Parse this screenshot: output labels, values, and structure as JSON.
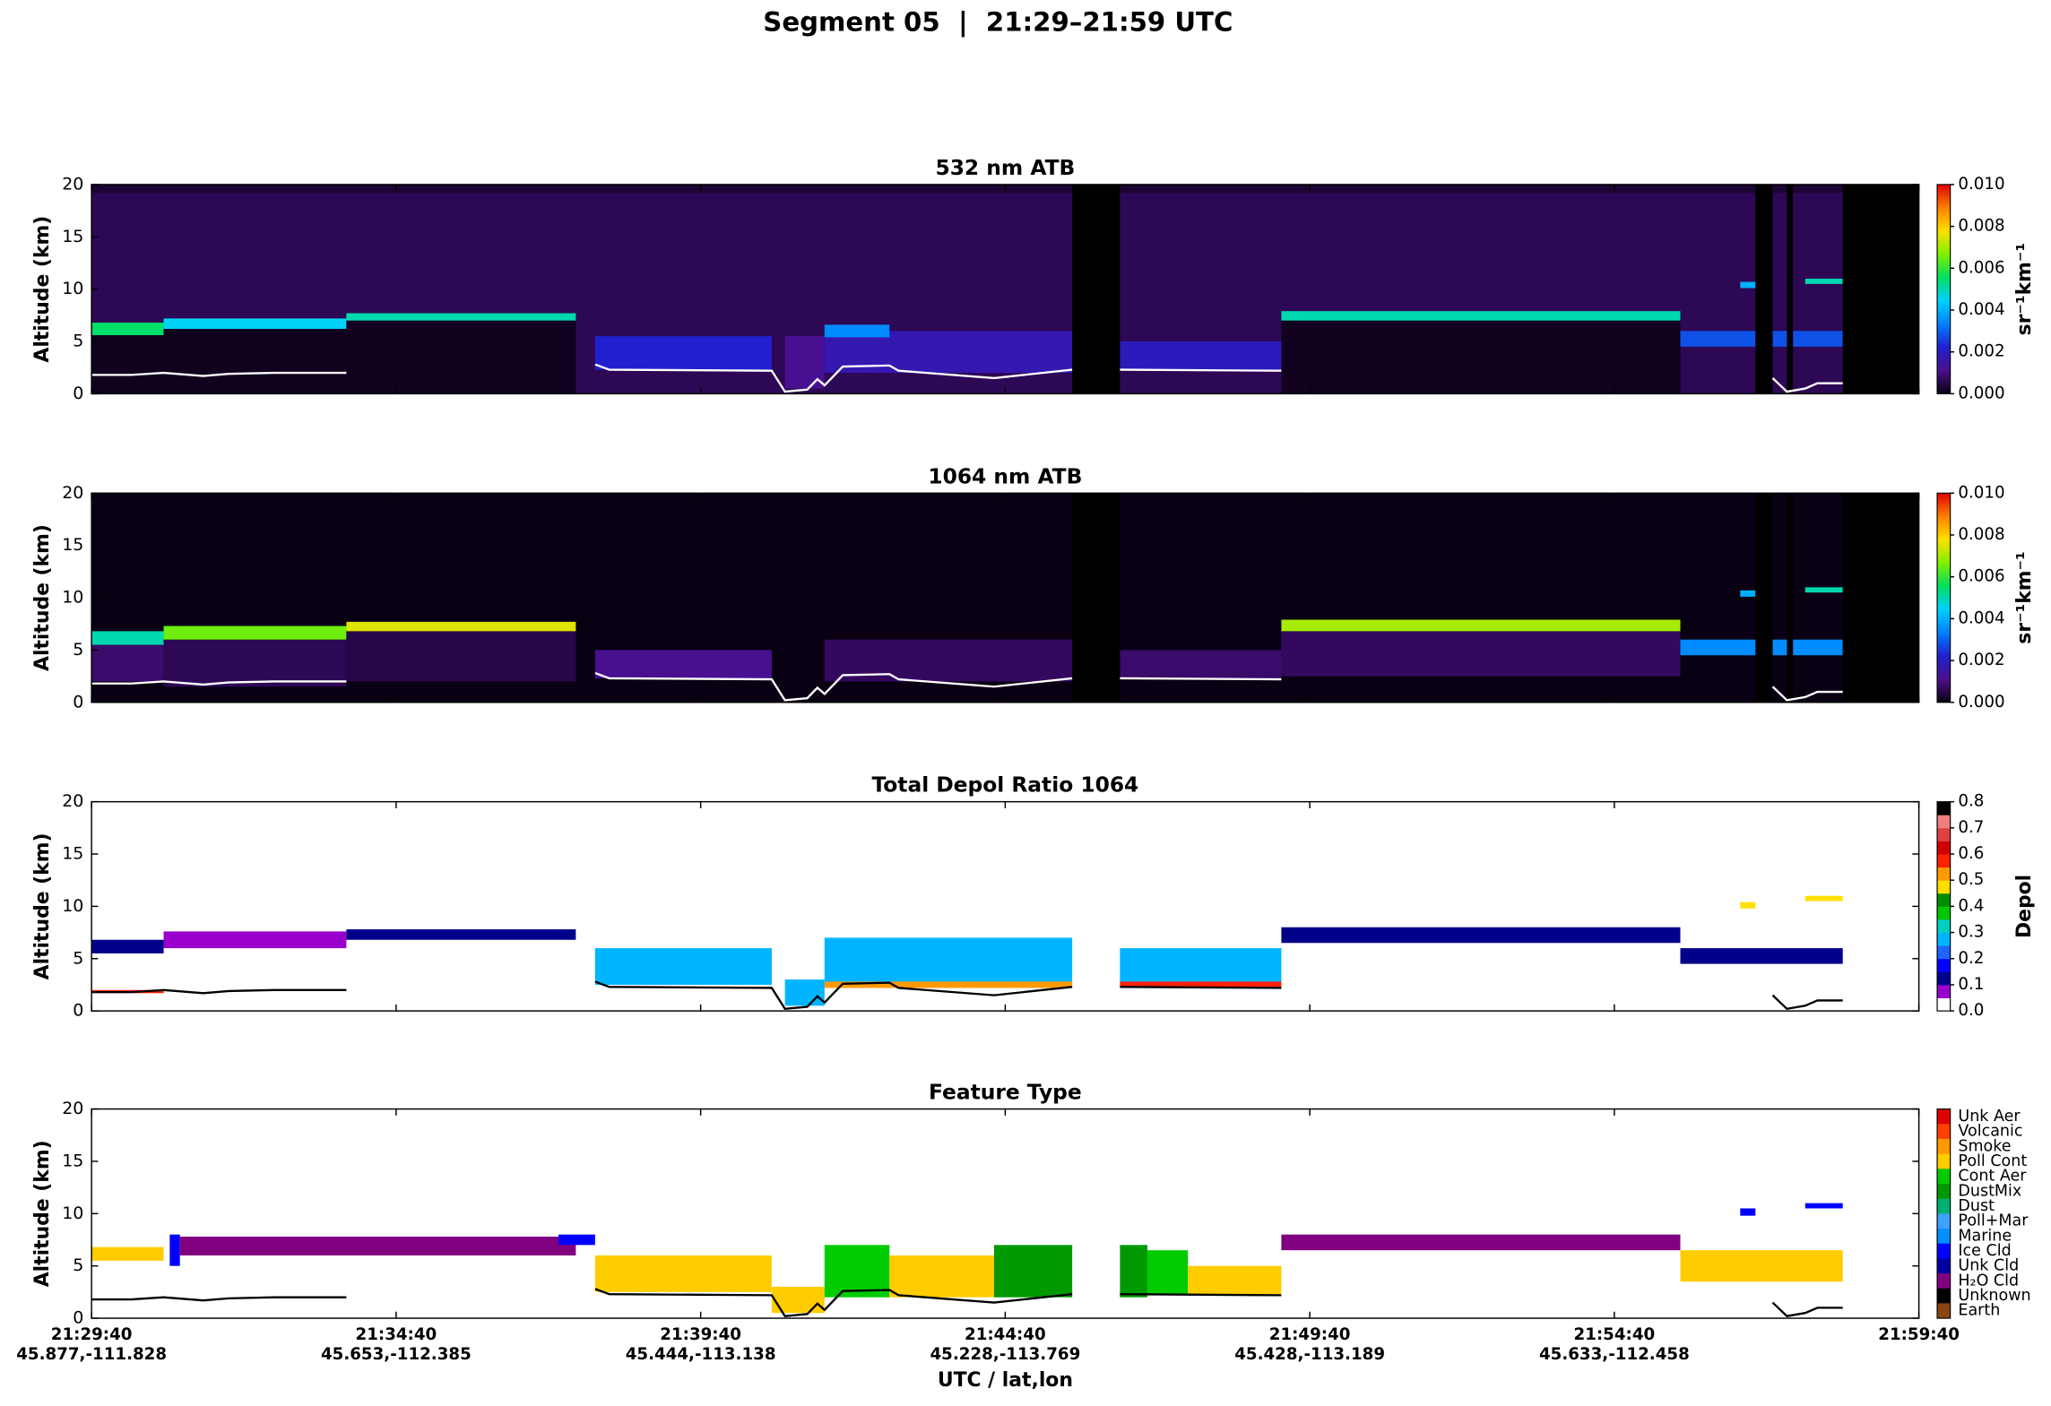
{
  "title": "Segment 05  |  21:29–21:59 UTC",
  "xaxis": {
    "label": "UTC / lat,lon",
    "xlim": [
      77380,
      79180
    ],
    "xticks": [
      {
        "value": 77380,
        "label": "21:29:40"
      },
      {
        "value": 77680,
        "label": "21:34:40"
      },
      {
        "value": 77980,
        "label": "21:39:40"
      },
      {
        "value": 78280,
        "label": "21:44:40"
      },
      {
        "value": 78580,
        "label": "21:49:40"
      },
      {
        "value": 78880,
        "label": "21:54:40"
      },
      {
        "value": 79180,
        "label": "21:59:40"
      }
    ],
    "xtick_sublabels": [
      "45.877,-111.828",
      "45.653,-112.385",
      "45.444,-113.138",
      "45.228,-113.769",
      "45.428,-113.189",
      "45.633,-112.458",
      null
    ]
  },
  "surface": {
    "x": [
      77380,
      77419,
      77451,
      77490,
      77515,
      77560,
      77631,
      77700,
      77876,
      77890,
      78050,
      78063,
      78085,
      78095,
      78102,
      78120,
      78166,
      78175,
      78269,
      78346,
      78360,
      78393,
      78552,
      78600,
      79036,
      79050,
      79068,
      79080,
      79105
    ],
    "y": [
      1.8,
      1.8,
      2.0,
      1.7,
      1.9,
      2.0,
      2.0,
      null,
      2.8,
      2.3,
      2.2,
      0.2,
      0.4,
      1.4,
      0.8,
      2.6,
      2.7,
      2.2,
      1.5,
      2.3,
      null,
      2.3,
      2.2,
      null,
      1.5,
      0.2,
      0.5,
      1.0,
      1.0
    ]
  },
  "chart_data": [
    {
      "type": "heatmap",
      "title": "532 nm ATB",
      "ylabel": "Altitude (km)",
      "ylim": [
        0,
        20
      ],
      "yticks": [
        0,
        5,
        10,
        15,
        20
      ],
      "clim": [
        0,
        0.01
      ],
      "cticks": [
        {
          "value": 0,
          "label": "0.000"
        },
        {
          "value": 0.002,
          "label": "0.002"
        },
        {
          "value": 0.004,
          "label": "0.004"
        },
        {
          "value": 0.006,
          "label": "0.006"
        },
        {
          "value": 0.008,
          "label": "0.008"
        },
        {
          "value": 0.01,
          "label": "0.010"
        }
      ],
      "colorbar_label": "sr⁻¹km⁻¹",
      "colormap": [
        "#0a0014",
        "#4b0f8c",
        "#2020d0",
        "#0080ff",
        "#00d0ff",
        "#00e060",
        "#80f000",
        "#ffe000",
        "#ff8000",
        "#e00000"
      ],
      "background": 0.0006,
      "surface_color": "#ffffff",
      "layers": [
        {
          "t0": 77380,
          "t1": 79180,
          "base": 19.2,
          "top": 20,
          "value": 0.0003
        },
        {
          "t0": 77380,
          "t1": 77451,
          "base": 0,
          "top": 5.6,
          "value": 0.0001
        },
        {
          "t0": 77380,
          "t1": 77451,
          "base": 5.6,
          "top": 6.8,
          "value": 0.0055
        },
        {
          "t0": 77451,
          "t1": 77631,
          "base": 0,
          "top": 6.2,
          "value": 0.0001
        },
        {
          "t0": 77451,
          "t1": 77631,
          "base": 6.2,
          "top": 7.2,
          "value": 0.0045
        },
        {
          "t0": 77631,
          "t1": 77857,
          "base": 0,
          "top": 7.0,
          "value": 0.0001
        },
        {
          "t0": 77631,
          "t1": 77857,
          "base": 7.0,
          "top": 7.7,
          "value": 0.005
        },
        {
          "t0": 77876,
          "t1": 78050,
          "base": 2.3,
          "top": 5.5,
          "value": 0.0022
        },
        {
          "t0": 78063,
          "t1": 78102,
          "base": 0.5,
          "top": 5.5,
          "value": 0.0012
        },
        {
          "t0": 78102,
          "t1": 78346,
          "base": 2.0,
          "top": 6.0,
          "value": 0.0017
        },
        {
          "t0": 78102,
          "t1": 78166,
          "base": 5.4,
          "top": 6.6,
          "value": 0.0035
        },
        {
          "t0": 78393,
          "t1": 78552,
          "base": 2.3,
          "top": 5.0,
          "value": 0.0019
        },
        {
          "t0": 78552,
          "t1": 78945,
          "base": 0,
          "top": 7.0,
          "value": 0.0001
        },
        {
          "t0": 78552,
          "t1": 78945,
          "base": 7.0,
          "top": 7.9,
          "value": 0.005
        },
        {
          "t0": 78945,
          "t1": 79105,
          "base": 4.5,
          "top": 6.0,
          "value": 0.0028
        },
        {
          "t0": 79004,
          "t1": 79019,
          "base": 10.1,
          "top": 10.7,
          "value": 0.004
        },
        {
          "t0": 79068,
          "t1": 79105,
          "base": 10.5,
          "top": 11.0,
          "value": 0.005
        }
      ],
      "nodata": [
        [
          78346,
          78393
        ],
        [
          79019,
          79036
        ],
        [
          79050,
          79056
        ],
        [
          79105,
          79180
        ]
      ]
    },
    {
      "type": "heatmap",
      "title": "1064 nm ATB",
      "ylabel": "Altitude (km)",
      "ylim": [
        0,
        20
      ],
      "yticks": [
        0,
        5,
        10,
        15,
        20
      ],
      "clim": [
        0,
        0.01
      ],
      "cticks": [
        {
          "value": 0,
          "label": "0.000"
        },
        {
          "value": 0.002,
          "label": "0.002"
        },
        {
          "value": 0.004,
          "label": "0.004"
        },
        {
          "value": 0.006,
          "label": "0.006"
        },
        {
          "value": 0.008,
          "label": "0.008"
        },
        {
          "value": 0.01,
          "label": "0.010"
        }
      ],
      "colorbar_label": "sr⁻¹km⁻¹",
      "colormap": [
        "#0a0014",
        "#4b0f8c",
        "#2020d0",
        "#0080ff",
        "#00d0ff",
        "#00e060",
        "#80f000",
        "#ffe000",
        "#ff8000",
        "#e00000"
      ],
      "background": 0,
      "surface_color": "#ffffff",
      "layers": [
        {
          "t0": 77380,
          "t1": 77451,
          "base": 2.0,
          "top": 5.5,
          "value": 0.0008
        },
        {
          "t0": 77380,
          "t1": 77451,
          "base": 5.5,
          "top": 6.8,
          "value": 0.005
        },
        {
          "t0": 77451,
          "t1": 77631,
          "base": 1.5,
          "top": 6.0,
          "value": 0.0006
        },
        {
          "t0": 77451,
          "t1": 77631,
          "base": 6.0,
          "top": 7.3,
          "value": 0.0065
        },
        {
          "t0": 77631,
          "t1": 77857,
          "base": 2.0,
          "top": 6.8,
          "value": 0.0005
        },
        {
          "t0": 77631,
          "t1": 77857,
          "base": 6.8,
          "top": 7.7,
          "value": 0.0075
        },
        {
          "t0": 77876,
          "t1": 78050,
          "base": 2.3,
          "top": 5.0,
          "value": 0.0012
        },
        {
          "t0": 78102,
          "t1": 78346,
          "base": 2.0,
          "top": 6.0,
          "value": 0.0007
        },
        {
          "t0": 78393,
          "t1": 78552,
          "base": 2.3,
          "top": 5.0,
          "value": 0.0008
        },
        {
          "t0": 78552,
          "t1": 78945,
          "base": 2.5,
          "top": 6.8,
          "value": 0.0007
        },
        {
          "t0": 78552,
          "t1": 78945,
          "base": 6.8,
          "top": 7.9,
          "value": 0.007
        },
        {
          "t0": 78945,
          "t1": 79105,
          "base": 4.5,
          "top": 6.0,
          "value": 0.0035
        },
        {
          "t0": 79004,
          "t1": 79019,
          "base": 10.1,
          "top": 10.7,
          "value": 0.004
        },
        {
          "t0": 79068,
          "t1": 79105,
          "base": 10.5,
          "top": 11.0,
          "value": 0.005
        }
      ],
      "nodata": [
        [
          78346,
          78393
        ],
        [
          79019,
          79036
        ],
        [
          79050,
          79056
        ],
        [
          79105,
          79180
        ]
      ]
    },
    {
      "type": "heatmap",
      "title": "Total Depol Ratio 1064",
      "ylabel": "Altitude (km)",
      "ylim": [
        0,
        20
      ],
      "yticks": [
        0,
        5,
        10,
        15,
        20
      ],
      "clim": [
        0,
        0.8
      ],
      "cticks": [
        {
          "value": 0,
          "label": "0.0"
        },
        {
          "value": 0.1,
          "label": "0.1"
        },
        {
          "value": 0.2,
          "label": "0.2"
        },
        {
          "value": 0.3,
          "label": "0.3"
        },
        {
          "value": 0.4,
          "label": "0.4"
        },
        {
          "value": 0.5,
          "label": "0.5"
        },
        {
          "value": 0.6,
          "label": "0.6"
        },
        {
          "value": 0.7,
          "label": "0.7"
        },
        {
          "value": 0.8,
          "label": "0.8"
        }
      ],
      "colorbar_label": "Depol",
      "colormap": [
        "#ffffff",
        "#9900cc",
        "#00008b",
        "#0000ff",
        "#1e64ff",
        "#00b4ff",
        "#00d0c0",
        "#00c800",
        "#008c00",
        "#ffe000",
        "#ff9900",
        "#ff2000",
        "#d00000",
        "#e04040",
        "#f08080",
        "#000000"
      ],
      "colormap_discrete": true,
      "surface_color": "#000000",
      "layers": [
        {
          "t0": 77380,
          "t1": 77451,
          "base": 5.5,
          "top": 6.8,
          "value": 0.1
        },
        {
          "t0": 77380,
          "t1": 77451,
          "base": 1.7,
          "top": 2.0,
          "value": 0.58
        },
        {
          "t0": 77451,
          "t1": 77631,
          "base": 6.0,
          "top": 7.6,
          "value": 0.08
        },
        {
          "t0": 77631,
          "t1": 77857,
          "base": 6.8,
          "top": 7.8,
          "value": 0.12
        },
        {
          "t0": 77876,
          "t1": 78050,
          "base": 2.5,
          "top": 6.0,
          "value": 0.3
        },
        {
          "t0": 78063,
          "t1": 78102,
          "base": 0.5,
          "top": 3.0,
          "value": 0.25
        },
        {
          "t0": 78102,
          "t1": 78346,
          "base": 2.5,
          "top": 7.0,
          "value": 0.3
        },
        {
          "t0": 78102,
          "t1": 78346,
          "base": 2.2,
          "top": 2.8,
          "value": 0.52
        },
        {
          "t0": 78393,
          "t1": 78552,
          "base": 2.5,
          "top": 6.0,
          "value": 0.3
        },
        {
          "t0": 78393,
          "t1": 78552,
          "base": 2.3,
          "top": 2.8,
          "value": 0.58
        },
        {
          "t0": 78552,
          "t1": 78945,
          "base": 6.5,
          "top": 8.0,
          "value": 0.13
        },
        {
          "t0": 78945,
          "t1": 79105,
          "base": 4.5,
          "top": 6.0,
          "value": 0.15
        },
        {
          "t0": 79004,
          "t1": 79019,
          "base": 9.8,
          "top": 10.4,
          "value": 0.45
        },
        {
          "t0": 79068,
          "t1": 79105,
          "base": 10.5,
          "top": 11.0,
          "value": 0.48
        }
      ]
    },
    {
      "type": "heatmap",
      "title": "Feature Type",
      "ylabel": "Altitude (km)",
      "ylim": [
        0,
        20
      ],
      "yticks": [
        0,
        5,
        10,
        15,
        20
      ],
      "categories": [
        "Unk Aer",
        "Volcanic",
        "Smoke",
        "Poll Cont",
        "Cont Aer",
        "DustMix",
        "Dust",
        "Poll+Mar",
        "Marine",
        "Ice Cld",
        "Unk Cld",
        "H₂O Cld",
        "Unknown",
        "Earth"
      ],
      "colors": [
        "#e00000",
        "#ff4000",
        "#ff9900",
        "#ffcc00",
        "#00cc00",
        "#009900",
        "#00b070",
        "#40a0ff",
        "#0090ff",
        "#0000ff",
        "#0000a0",
        "#800080",
        "#000000",
        "#8b4513"
      ],
      "surface_color": "#000000",
      "layers": [
        {
          "t0": 77380,
          "t1": 77451,
          "base": 5.5,
          "top": 6.8,
          "value": "Poll Cont"
        },
        {
          "t0": 77457,
          "t1": 77467,
          "base": 5.0,
          "top": 8.0,
          "value": "Ice Cld"
        },
        {
          "t0": 77467,
          "t1": 77857,
          "base": 6.0,
          "top": 7.8,
          "value": "H₂O Cld"
        },
        {
          "t0": 77840,
          "t1": 77876,
          "base": 7.0,
          "top": 8.0,
          "value": "Ice Cld"
        },
        {
          "t0": 77876,
          "t1": 78050,
          "base": 2.5,
          "top": 6.0,
          "value": "Poll Cont"
        },
        {
          "t0": 78050,
          "t1": 78102,
          "base": 0.5,
          "top": 3.0,
          "value": "Poll Cont"
        },
        {
          "t0": 78102,
          "t1": 78166,
          "base": 2.0,
          "top": 7.0,
          "value": "Cont Aer"
        },
        {
          "t0": 78166,
          "t1": 78269,
          "base": 2.0,
          "top": 6.0,
          "value": "Poll Cont"
        },
        {
          "t0": 78269,
          "t1": 78346,
          "base": 2.0,
          "top": 7.0,
          "value": "DustMix"
        },
        {
          "t0": 78393,
          "t1": 78420,
          "base": 2.0,
          "top": 7.0,
          "value": "DustMix"
        },
        {
          "t0": 78420,
          "t1": 78460,
          "base": 2.3,
          "top": 6.5,
          "value": "Cont Aer"
        },
        {
          "t0": 78460,
          "t1": 78552,
          "base": 2.3,
          "top": 5.0,
          "value": "Poll Cont"
        },
        {
          "t0": 78552,
          "t1": 78945,
          "base": 6.5,
          "top": 8.0,
          "value": "H₂O Cld"
        },
        {
          "t0": 78945,
          "t1": 79105,
          "base": 3.5,
          "top": 6.5,
          "value": "Poll Cont"
        },
        {
          "t0": 79004,
          "t1": 79019,
          "base": 9.8,
          "top": 10.5,
          "value": "Ice Cld"
        },
        {
          "t0": 79068,
          "t1": 79105,
          "base": 10.5,
          "top": 11.0,
          "value": "Ice Cld"
        }
      ]
    }
  ]
}
